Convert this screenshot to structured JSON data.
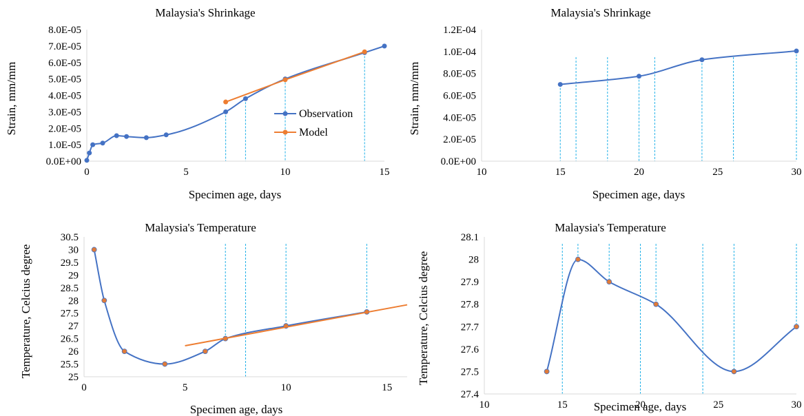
{
  "colors": {
    "series_blue": "#4472C4",
    "model_orange": "#ED7D31",
    "marker_orange": "#E07B39",
    "guide_cyan": "#1FB0E8",
    "axis_gray": "#D9D9D9"
  },
  "chart_data": [
    {
      "type": "line",
      "title": "Malaysia's  Shrinkage",
      "xlabel": "Specimen age,  days",
      "ylabel": "Strain, mm/mm",
      "xlim": [
        0,
        15
      ],
      "ylim": [
        0,
        8e-05
      ],
      "x_ticks": [
        0,
        5,
        10,
        15
      ],
      "x_tick_labels": [
        "0",
        "5",
        "10",
        "15"
      ],
      "y_ticks": [
        0,
        1e-05,
        2e-05,
        3e-05,
        4e-05,
        5e-05,
        6e-05,
        7e-05,
        8e-05
      ],
      "y_tick_labels": [
        "0.0E+00",
        "1.0E-05",
        "2.0E-05",
        "3.0E-05",
        "4.0E-05",
        "5.0E-05",
        "6.0E-05",
        "7.0E-05",
        "8.0E-05"
      ],
      "legend_position": "right",
      "grid": false,
      "series": [
        {
          "name": "Observation",
          "color": "#4472C4",
          "smooth": true,
          "x": [
            0,
            0.13,
            0.3,
            0.8,
            1.5,
            2,
            3,
            4,
            7,
            8,
            10,
            14,
            15
          ],
          "y": [
            5e-07,
            5e-06,
            1e-05,
            1.1e-05,
            1.55e-05,
            1.5e-05,
            1.43e-05,
            1.6e-05,
            3e-05,
            3.8e-05,
            5e-05,
            6.6e-05,
            7e-05
          ]
        },
        {
          "name": "Model",
          "color": "#ED7D31",
          "smooth": false,
          "x": [
            7,
            10,
            14
          ],
          "y": [
            3.6e-05,
            4.95e-05,
            6.65e-05
          ]
        }
      ],
      "guides": [
        7,
        8,
        10,
        14
      ]
    },
    {
      "type": "line",
      "title": "Malaysia's  Shrinkage",
      "xlabel": "Specimen age,  days",
      "ylabel": "Strain, mm/mm",
      "xlim": [
        10,
        30
      ],
      "ylim": [
        0,
        0.00012
      ],
      "x_ticks": [
        10,
        15,
        20,
        25,
        30
      ],
      "x_tick_labels": [
        "10",
        "15",
        "20",
        "25",
        "30"
      ],
      "y_ticks": [
        0,
        2e-05,
        4e-05,
        6e-05,
        8e-05,
        0.0001,
        0.00012
      ],
      "y_tick_labels": [
        "0.0E+00",
        "2.0E-05",
        "4.0E-05",
        "6.0E-05",
        "8.0E-05",
        "1.0E-04",
        "1.2E-04"
      ],
      "grid": false,
      "series": [
        {
          "color": "#4472C4",
          "smooth": true,
          "x": [
            15,
            20,
            24,
            30
          ],
          "y": [
            7e-05,
            7.75e-05,
            9.25e-05,
            0.0001005
          ]
        }
      ],
      "guides": [
        15,
        16,
        18,
        20,
        21,
        24,
        26,
        30
      ]
    },
    {
      "type": "line",
      "title": "Malaysia's  Temperature",
      "xlabel": "Specimen age,  days",
      "ylabel": "Temperature, Celcius degree",
      "xlim": [
        0,
        16
      ],
      "ylim": [
        25,
        30.5
      ],
      "x_ticks": [
        0,
        5,
        10,
        15
      ],
      "x_tick_labels": [
        "0",
        "5",
        "10",
        "15"
      ],
      "y_ticks": [
        25,
        25.5,
        26,
        26.5,
        27,
        27.5,
        28,
        28.5,
        29,
        29.5,
        30,
        30.5
      ],
      "y_tick_labels": [
        "25",
        "25.5",
        "26",
        "26.5",
        "27",
        "27.5",
        "28",
        "28.5",
        "29",
        "29.5",
        "30",
        "30.5"
      ],
      "grid": false,
      "series": [
        {
          "color": "#4472C4",
          "smooth": true,
          "x": [
            0.5,
            1,
            2,
            4,
            6,
            7,
            10,
            14
          ],
          "y": [
            30,
            28,
            26,
            25.5,
            26,
            26.5,
            27,
            27.55
          ]
        },
        {
          "color": "#ED7D31",
          "smooth": false,
          "x": [
            5,
            16
          ],
          "y": [
            26.22,
            27.83
          ]
        }
      ],
      "guides": [
        7,
        8,
        10,
        14
      ]
    },
    {
      "type": "line",
      "title": "Malaysia's  Temperature",
      "xlabel": "Specimen age,  days",
      "ylabel": "Temperature, Celcius degree",
      "xlim": [
        10,
        30
      ],
      "ylim": [
        27.4,
        28.1
      ],
      "x_ticks": [
        10,
        15,
        20,
        25,
        30
      ],
      "x_tick_labels": [
        "10",
        "15",
        "20",
        "25",
        "30"
      ],
      "y_ticks": [
        27.4,
        27.5,
        27.6,
        27.7,
        27.8,
        27.9,
        28,
        28.1
      ],
      "y_tick_labels": [
        "27.4",
        "27.5",
        "27.6",
        "27.7",
        "27.8",
        "27.9",
        "28",
        "28.1"
      ],
      "grid": false,
      "series": [
        {
          "color": "#4472C4",
          "smooth": true,
          "x": [
            14,
            16,
            18,
            21,
            26,
            30
          ],
          "y": [
            27.5,
            28,
            27.9,
            27.8,
            27.5,
            27.7
          ]
        }
      ],
      "guides": [
        15,
        16,
        18,
        20,
        21,
        24,
        26,
        30
      ]
    }
  ]
}
